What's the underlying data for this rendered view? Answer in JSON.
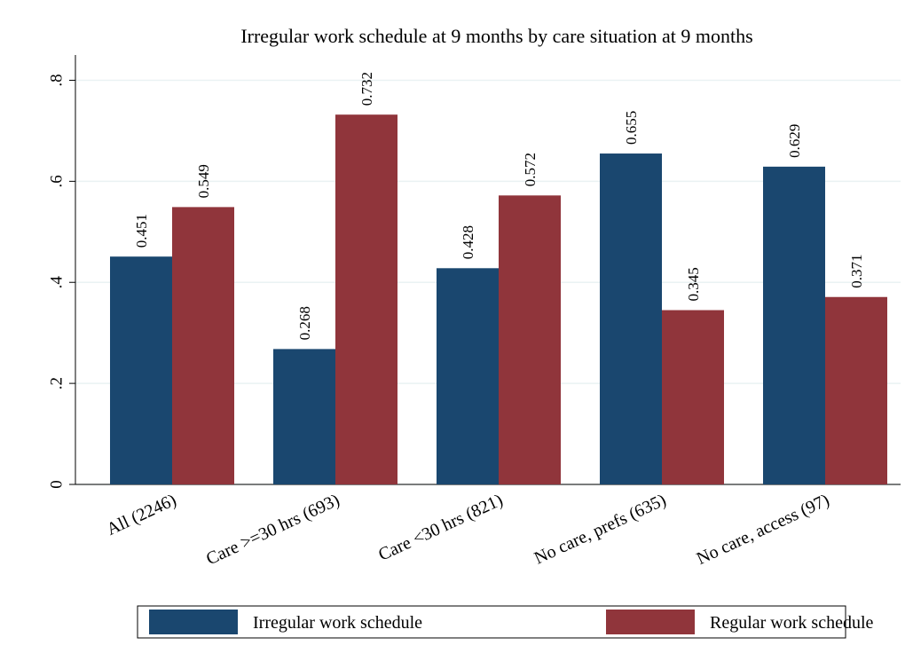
{
  "chart_data": {
    "type": "bar",
    "title": "Irregular work schedule at 9 months by care situation at 9 months",
    "categories": [
      "All (2246)",
      "Care >=30 hrs (693)",
      "Care <30 hrs (821)",
      "No care, prefs (635)",
      "No care, access (97)"
    ],
    "series": [
      {
        "name": "Irregular work schedule",
        "color": "#1a476f",
        "values": [
          0.451,
          0.268,
          0.428,
          0.655,
          0.629
        ]
      },
      {
        "name": "Regular work schedule",
        "color": "#90353b",
        "values": [
          0.549,
          0.732,
          0.572,
          0.345,
          0.371
        ]
      }
    ],
    "ylim": [
      0,
      0.85
    ],
    "yticks": [
      0,
      {
        "value": 0.2,
        "label": ".2"
      },
      {
        "value": 0.4,
        "label": ".4"
      },
      {
        "value": 0.6,
        "label": ".6"
      },
      {
        "value": 0.8,
        "label": ".8"
      }
    ],
    "grid": true,
    "legend": "bottom"
  }
}
